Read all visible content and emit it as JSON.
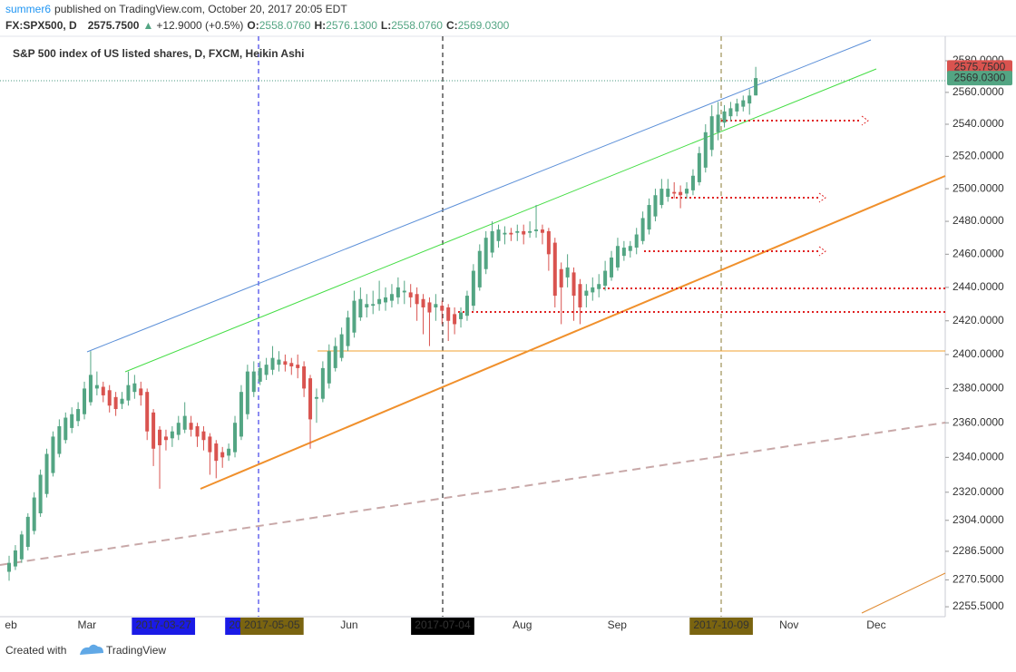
{
  "header": {
    "user": "summer6",
    "published": "published on TradingView.com, October 20, 2017 20:05 EDT",
    "symbol": "FX:SPX500, D",
    "last": "2575.7500",
    "arrow": "▲",
    "change": "+12.9000 (+0.5%)",
    "open_label": "O:",
    "open": "2558.0760",
    "high_label": "H:",
    "high": "2576.1300",
    "low_label": "L:",
    "low": "2558.0760",
    "close_label": "C:",
    "close": "2569.0300"
  },
  "footer": {
    "created": "Created with",
    "brand": "TradingView"
  },
  "chart_data": {
    "type": "candlestick",
    "title": "S&P 500 index of US listed shares, D, FXCM, Heikin Ashi",
    "log": true,
    "up_color": "#53a583",
    "down_color": "#d9534f",
    "ylim": [
      2250,
      2595.6
    ],
    "yticks": [
      {
        "value": 2580,
        "label": "2580.0000"
      },
      {
        "value": 2560,
        "label": "2560.0000"
      },
      {
        "value": 2540,
        "label": "2540.0000"
      },
      {
        "value": 2520,
        "label": "2520.0000"
      },
      {
        "value": 2500,
        "label": "2500.0000"
      },
      {
        "value": 2480,
        "label": "2480.0000"
      },
      {
        "value": 2460,
        "label": "2460.0000"
      },
      {
        "value": 2440,
        "label": "2440.0000"
      },
      {
        "value": 2420,
        "label": "2420.0000"
      },
      {
        "value": 2400,
        "label": "2400.0000"
      },
      {
        "value": 2380,
        "label": "2380.0000"
      },
      {
        "value": 2360,
        "label": "2360.0000"
      },
      {
        "value": 2340,
        "label": "2340.0000"
      },
      {
        "value": 2320,
        "label": "2320.0000"
      },
      {
        "value": 2304,
        "label": "2304.0000"
      },
      {
        "value": 2286.5,
        "label": "2286.5000"
      },
      {
        "value": 2270.5,
        "label": "2270.5000"
      },
      {
        "value": 2255.5,
        "label": "2255.5000"
      }
    ],
    "xlim": [
      -1.45,
      149.2
    ],
    "xticks": [
      {
        "value": 0.3,
        "label": "eb"
      },
      {
        "value": 12.4,
        "label": "Mar"
      },
      {
        "value": 24.6,
        "label": "2017-03-27",
        "color": "#1a1ae6"
      },
      {
        "value": 36,
        "label": "20",
        "color": "#1a1ae6"
      },
      {
        "value": 41.9,
        "label": "2017-05-05",
        "color": "#7a6410"
      },
      {
        "value": 54.2,
        "label": "Jun"
      },
      {
        "value": 69.1,
        "label": "2017-07-04",
        "color": "#000000"
      },
      {
        "value": 81.8,
        "label": "Aug"
      },
      {
        "value": 96.9,
        "label": "Sep"
      },
      {
        "value": 113.5,
        "label": "2017-10-09",
        "color": "#7a6410"
      },
      {
        "value": 124.3,
        "label": "Nov"
      },
      {
        "value": 138.2,
        "label": "Dec"
      }
    ],
    "price_labels": [
      {
        "value": 2575.75,
        "label": "2575.7500",
        "color": "#d9534f"
      },
      {
        "value": 2569.03,
        "label": "2569.0300",
        "color": "#53a583"
      }
    ],
    "ohlc": [
      [
        2275,
        2284,
        2270,
        2280
      ],
      [
        2278,
        2290,
        2276,
        2287
      ],
      [
        2282,
        2298,
        2280,
        2296
      ],
      [
        2289,
        2308,
        2287,
        2306
      ],
      [
        2298,
        2320,
        2296,
        2317
      ],
      [
        2308,
        2333,
        2306,
        2330
      ],
      [
        2319,
        2345,
        2317,
        2342
      ],
      [
        2331,
        2355,
        2329,
        2352
      ],
      [
        2342,
        2362,
        2340,
        2358
      ],
      [
        2350,
        2366,
        2348,
        2363
      ],
      [
        2357,
        2369,
        2354,
        2365
      ],
      [
        2361,
        2372,
        2358,
        2368
      ],
      [
        2365,
        2384,
        2362,
        2380
      ],
      [
        2372,
        2402,
        2370,
        2388
      ],
      [
        2380,
        2390,
        2376,
        2382
      ],
      [
        2381,
        2384,
        2372,
        2376
      ],
      [
        2379,
        2382,
        2366,
        2370
      ],
      [
        2375,
        2378,
        2364,
        2368
      ],
      [
        2371,
        2378,
        2368,
        2374
      ],
      [
        2373,
        2390,
        2370,
        2382
      ],
      [
        2378,
        2388,
        2374,
        2383
      ],
      [
        2380,
        2384,
        2370,
        2376
      ],
      [
        2378,
        2380,
        2350,
        2355
      ],
      [
        2366,
        2368,
        2335,
        2345
      ],
      [
        2356,
        2358,
        2322,
        2347
      ],
      [
        2352,
        2356,
        2344,
        2350
      ],
      [
        2351,
        2358,
        2346,
        2355
      ],
      [
        2353,
        2364,
        2350,
        2360
      ],
      [
        2356,
        2372,
        2354,
        2364
      ],
      [
        2360,
        2364,
        2352,
        2356
      ],
      [
        2358,
        2360,
        2346,
        2352
      ],
      [
        2355,
        2358,
        2344,
        2350
      ],
      [
        2352,
        2354,
        2330,
        2343
      ],
      [
        2348,
        2350,
        2328,
        2338
      ],
      [
        2343,
        2346,
        2334,
        2340
      ],
      [
        2341,
        2348,
        2338,
        2345
      ],
      [
        2343,
        2364,
        2340,
        2360
      ],
      [
        2352,
        2382,
        2350,
        2378
      ],
      [
        2365,
        2394,
        2362,
        2390
      ],
      [
        2378,
        2396,
        2375,
        2390
      ],
      [
        2384,
        2396,
        2382,
        2392
      ],
      [
        2388,
        2398,
        2385,
        2394
      ],
      [
        2391,
        2405,
        2388,
        2398
      ],
      [
        2394,
        2402,
        2390,
        2397
      ],
      [
        2396,
        2400,
        2390,
        2394
      ],
      [
        2395,
        2398,
        2388,
        2393
      ],
      [
        2394,
        2400,
        2386,
        2392
      ],
      [
        2393,
        2396,
        2375,
        2380
      ],
      [
        2386,
        2388,
        2345,
        2362
      ],
      [
        2374,
        2380,
        2360,
        2375
      ],
      [
        2374,
        2396,
        2372,
        2392
      ],
      [
        2383,
        2406,
        2380,
        2402
      ],
      [
        2392,
        2410,
        2390,
        2405
      ],
      [
        2398,
        2416,
        2396,
        2412
      ],
      [
        2405,
        2426,
        2402,
        2422
      ],
      [
        2413,
        2438,
        2410,
        2432
      ],
      [
        2422,
        2440,
        2420,
        2433
      ],
      [
        2428,
        2436,
        2422,
        2430
      ],
      [
        2429,
        2438,
        2424,
        2430
      ],
      [
        2430,
        2444,
        2426,
        2433
      ],
      [
        2431,
        2440,
        2426,
        2434
      ],
      [
        2432,
        2442,
        2428,
        2436
      ],
      [
        2434,
        2446,
        2430,
        2440
      ],
      [
        2437,
        2444,
        2430,
        2438
      ],
      [
        2437,
        2442,
        2428,
        2434
      ],
      [
        2436,
        2440,
        2420,
        2430
      ],
      [
        2433,
        2436,
        2412,
        2428
      ],
      [
        2431,
        2434,
        2405,
        2425
      ],
      [
        2428,
        2436,
        2420,
        2430
      ],
      [
        2429,
        2432,
        2418,
        2426
      ],
      [
        2428,
        2430,
        2408,
        2420
      ],
      [
        2424,
        2428,
        2412,
        2418
      ],
      [
        2421,
        2428,
        2416,
        2425
      ],
      [
        2423,
        2438,
        2420,
        2435
      ],
      [
        2429,
        2454,
        2426,
        2450
      ],
      [
        2440,
        2466,
        2438,
        2462
      ],
      [
        2451,
        2474,
        2448,
        2470
      ],
      [
        2461,
        2480,
        2458,
        2474
      ],
      [
        2468,
        2478,
        2464,
        2475
      ],
      [
        2472,
        2477,
        2466,
        2473
      ],
      [
        2473,
        2476,
        2468,
        2472
      ],
      [
        2473,
        2478,
        2468,
        2474
      ],
      [
        2474,
        2478,
        2466,
        2472
      ],
      [
        2473,
        2480,
        2470,
        2474
      ],
      [
        2474,
        2490,
        2470,
        2475
      ],
      [
        2475,
        2478,
        2466,
        2473
      ],
      [
        2474,
        2476,
        2450,
        2460
      ],
      [
        2467,
        2470,
        2428,
        2435
      ],
      [
        2451,
        2455,
        2418,
        2440
      ],
      [
        2446,
        2460,
        2440,
        2452
      ],
      [
        2449,
        2452,
        2420,
        2435
      ],
      [
        2442,
        2445,
        2418,
        2428
      ],
      [
        2435,
        2442,
        2428,
        2438
      ],
      [
        2437,
        2446,
        2432,
        2440
      ],
      [
        2439,
        2448,
        2434,
        2442
      ],
      [
        2441,
        2456,
        2438,
        2450
      ],
      [
        2446,
        2462,
        2444,
        2458
      ],
      [
        2452,
        2470,
        2450,
        2465
      ],
      [
        2459,
        2468,
        2456,
        2464
      ],
      [
        2462,
        2468,
        2458,
        2465
      ],
      [
        2464,
        2476,
        2460,
        2472
      ],
      [
        2468,
        2486,
        2466,
        2482
      ],
      [
        2475,
        2494,
        2472,
        2490
      ],
      [
        2483,
        2500,
        2480,
        2496
      ],
      [
        2490,
        2506,
        2488,
        2500
      ],
      [
        2495,
        2506,
        2492,
        2500
      ],
      [
        2498,
        2504,
        2494,
        2497
      ],
      [
        2498,
        2502,
        2488,
        2496
      ],
      [
        2497,
        2504,
        2494,
        2500
      ],
      [
        2499,
        2512,
        2496,
        2508
      ],
      [
        2504,
        2526,
        2502,
        2522
      ],
      [
        2513,
        2540,
        2510,
        2535
      ],
      [
        2524,
        2552,
        2520,
        2545
      ],
      [
        2535,
        2554,
        2530,
        2546
      ],
      [
        2541,
        2552,
        2538,
        2548
      ],
      [
        2545,
        2554,
        2542,
        2550
      ],
      [
        2548,
        2556,
        2545,
        2553
      ],
      [
        2551,
        2558,
        2548,
        2555
      ],
      [
        2553,
        2562,
        2546,
        2558
      ],
      [
        2558.076,
        2576.13,
        2558.076,
        2569.03
      ]
    ]
  }
}
